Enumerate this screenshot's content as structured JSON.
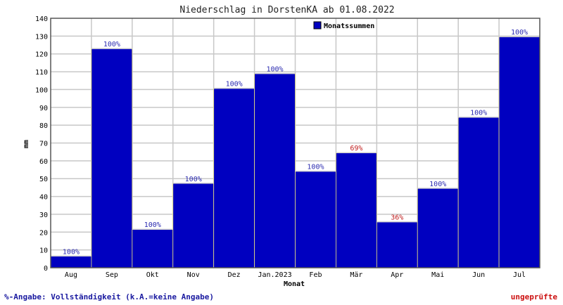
{
  "chart_data": {
    "type": "bar",
    "title": "Niederschlag in DorstenKA ab 01.08.2022",
    "xlabel": "Monat",
    "ylabel": "mm",
    "ylim": [
      0,
      140
    ],
    "ytick_step": 10,
    "grid": true,
    "legend_position": "top-center",
    "categories": [
      "Aug",
      "Sep",
      "Okt",
      "Nov",
      "Dez",
      "Jan.2023",
      "Feb",
      "Mär",
      "Apr",
      "Mai",
      "Jun",
      "Jul"
    ],
    "series": [
      {
        "name": "Monatssummen",
        "color": "#0000c0",
        "values": [
          6.6,
          123,
          21.6,
          47.4,
          100.7,
          109,
          54.2,
          64.6,
          25.8,
          44.6,
          84.5,
          129.7
        ],
        "labels": [
          "100%",
          "100%",
          "100%",
          "100%",
          "100%",
          "100%",
          "100%",
          "69%",
          "36%",
          "100%",
          "100%",
          "100%"
        ]
      }
    ],
    "label_colors": {
      "complete": "#2a2ab0",
      "incomplete": "#c02020"
    }
  },
  "footer": {
    "note": "%-Angabe: Vollständigkeit (k.A.=keine Angabe)",
    "status": "ungeprüfte",
    "note_color": "#1a1aa0",
    "status_color": "#cc1010"
  }
}
